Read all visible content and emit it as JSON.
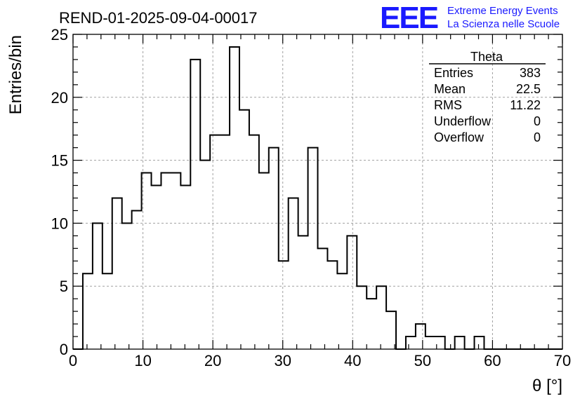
{
  "header": {
    "run_title": "REND-01-2025-09-04-00017",
    "logo_text": "EEE",
    "logo_line1": "Extreme Energy Events",
    "logo_line2": "La Scienza nelle Scuole"
  },
  "stats": {
    "title": "Theta",
    "rows": [
      {
        "label": "Entries",
        "value": "383"
      },
      {
        "label": "Mean",
        "value": "22.5"
      },
      {
        "label": "RMS",
        "value": "11.22"
      },
      {
        "label": "Underflow",
        "value": "0"
      },
      {
        "label": "Overflow",
        "value": "0"
      }
    ]
  },
  "colors": {
    "logo": "#1a1aff",
    "line": "#000000",
    "grid": "#a0a0a0"
  },
  "chart_data": {
    "type": "histogram",
    "xlabel": "θ [°]",
    "ylabel": "Entries/bin",
    "xlim": [
      0,
      70
    ],
    "ylim": [
      0,
      25
    ],
    "xticks": [
      0,
      10,
      20,
      30,
      40,
      50,
      60,
      70
    ],
    "yticks": [
      0,
      5,
      10,
      15,
      20,
      25
    ],
    "grid": true,
    "bin_edges_start": 0,
    "bin_width": 1.4,
    "counts": [
      0,
      6,
      10,
      6,
      12,
      10,
      11,
      14,
      13,
      14,
      14,
      13,
      23,
      15,
      17,
      17,
      24,
      19,
      17,
      14,
      16,
      7,
      12,
      9,
      16,
      8,
      7,
      6,
      9,
      5,
      4,
      5,
      3,
      0,
      1,
      2,
      1,
      1,
      0,
      1,
      0,
      1,
      0,
      0,
      0,
      0,
      0,
      0,
      0,
      0
    ]
  }
}
